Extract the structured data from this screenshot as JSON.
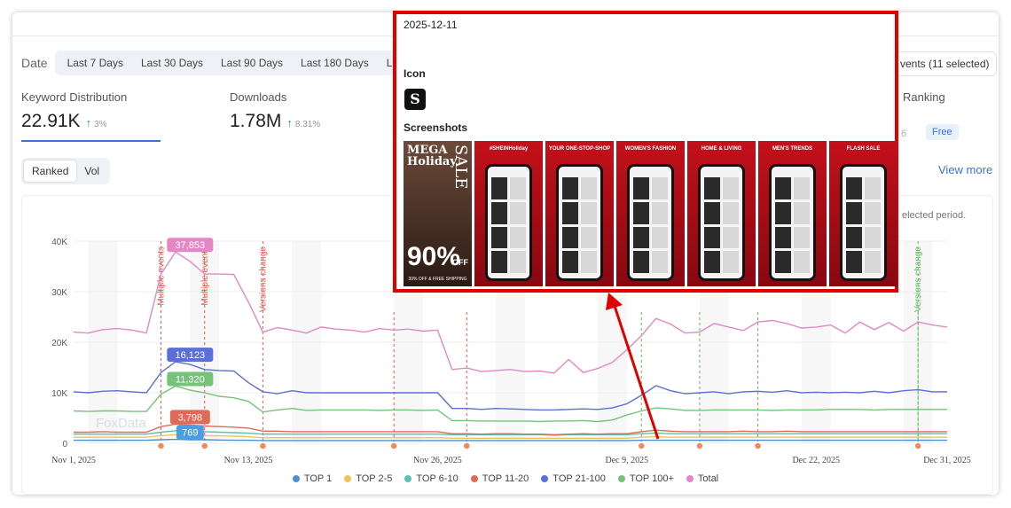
{
  "date_filter": {
    "label": "Date",
    "options": [
      "Last 7 Days",
      "Last 30 Days",
      "Last 90 Days",
      "Last 180 Days",
      "Last"
    ]
  },
  "events_filter": {
    "label": "vents (11 selected)"
  },
  "metrics": {
    "keyword_distribution": {
      "label": "Keyword Distribution",
      "value": "22.91K",
      "delta": "3%"
    },
    "downloads": {
      "label": "Downloads",
      "value": "1.78M",
      "delta": "8.31%"
    },
    "ranking": {
      "label": "Ranking",
      "small": "6",
      "badge": "Free"
    }
  },
  "toggle": {
    "ranked": "Ranked",
    "vol": "Vol"
  },
  "view_more": "View more",
  "period_note": "elected period.",
  "watermark": "FoxData",
  "popup": {
    "date": "2025-12-11",
    "icon_heading": "Icon",
    "icon_letter": "S",
    "screenshots_heading": "Screenshots",
    "screenshots": [
      {
        "caption": "",
        "title": "MEGA Holiday",
        "side": "SALE",
        "big": "90%",
        "off": "OFF",
        "footer": "30% OFF & FREE SHIPPING"
      },
      {
        "caption": "#SHEINHoliday"
      },
      {
        "caption": "YOUR ONE-STOP-SHOP"
      },
      {
        "caption": "WOMEN'S FASHION"
      },
      {
        "caption": "HOME & LIVING"
      },
      {
        "caption": "MEN'S TRENDS"
      },
      {
        "caption": "FLASH SALE"
      }
    ]
  },
  "chart_data": {
    "type": "line",
    "ylim": [
      0,
      40000
    ],
    "y_ticks": [
      "0",
      "10K",
      "20K",
      "30K",
      "40K"
    ],
    "x_ticks": [
      {
        "label": "Nov 1, 2025",
        "day": 0
      },
      {
        "label": "Nov 13, 2025",
        "day": 12
      },
      {
        "label": "Nov 26, 2025",
        "day": 25
      },
      {
        "label": "Dec 9, 2025",
        "day": 38
      },
      {
        "label": "Dec 22, 2025",
        "day": 51
      },
      {
        "label": "Dec 31, 2025",
        "day": 60
      }
    ],
    "annotations": [
      {
        "day": 6,
        "text": "Multiple events",
        "color": "#e05a4f"
      },
      {
        "day": 9,
        "text": "Multiple events",
        "color": "#e05a4f"
      },
      {
        "day": 13,
        "text": "Versions change",
        "color": "#e05a4f"
      },
      {
        "day": 58,
        "text": "Versions change",
        "color": "#5cb85c"
      }
    ],
    "event_lines": [
      {
        "day": 22,
        "color": "#e05a4f"
      },
      {
        "day": 27,
        "color": "#e05a4f"
      },
      {
        "day": 39,
        "color": "#5cb85c"
      },
      {
        "day": 43,
        "color": "#5cb85c"
      },
      {
        "day": 47,
        "color": "#5cb85c"
      },
      {
        "day": 58,
        "color": "#5cb85c"
      }
    ],
    "event_markers": [
      6,
      9,
      13,
      22,
      27,
      39,
      43,
      47,
      58
    ],
    "value_labels": [
      {
        "text": "37,853",
        "day": 8,
        "value": 37853,
        "color": "#e487c4"
      },
      {
        "text": "16,123",
        "day": 8,
        "value": 16123,
        "color": "#5b6fd6"
      },
      {
        "text": "11,320",
        "day": 8,
        "value": 11320,
        "color": "#77c27a"
      },
      {
        "text": "3,798",
        "day": 8,
        "value": 3798,
        "color": "#e06a57"
      },
      {
        "text": "769",
        "day": 8,
        "value": 769,
        "color": "#4a9de0"
      }
    ],
    "series": [
      {
        "name": "TOP 1",
        "color": "#4a90d9",
        "values": [
          600,
          600,
          600,
          600,
          600,
          600,
          700,
          769,
          700,
          700,
          650,
          600,
          600,
          550,
          550,
          550,
          550,
          550,
          550,
          550,
          550,
          550,
          550,
          550,
          550,
          550,
          550,
          550,
          550,
          550,
          550,
          550,
          550,
          550,
          550,
          550,
          550,
          550,
          550,
          600,
          600,
          600,
          600,
          600,
          600,
          600,
          600,
          600,
          600,
          600,
          600,
          600,
          600,
          600,
          600,
          600,
          600,
          600,
          600,
          600,
          600
        ]
      },
      {
        "name": "TOP 2-5",
        "color": "#f0c25a",
        "values": [
          1200,
          1200,
          1200,
          1200,
          1200,
          1200,
          1500,
          1700,
          1600,
          1500,
          1450,
          1400,
          1300,
          1100,
          1100,
          1100,
          1100,
          1100,
          1100,
          1100,
          1100,
          1100,
          1100,
          1100,
          1100,
          1100,
          1000,
          1000,
          1000,
          1000,
          1000,
          1000,
          1000,
          1000,
          1000,
          1000,
          1000,
          1000,
          1000,
          1200,
          1300,
          1200,
          1200,
          1200,
          1200,
          1200,
          1200,
          1200,
          1200,
          1200,
          1200,
          1200,
          1200,
          1200,
          1200,
          1200,
          1200,
          1200,
          1200,
          1200,
          1200
        ]
      },
      {
        "name": "TOP 6-10",
        "color": "#5cc0b0",
        "values": [
          1800,
          1800,
          1800,
          1800,
          1800,
          1800,
          2200,
          2500,
          2400,
          2300,
          2200,
          2100,
          2000,
          1800,
          1800,
          1800,
          1800,
          1800,
          1800,
          1800,
          1800,
          1800,
          1800,
          1800,
          1800,
          1800,
          1700,
          1700,
          1700,
          1700,
          1700,
          1700,
          1700,
          1600,
          1700,
          1700,
          1700,
          1700,
          1700,
          1900,
          2000,
          1900,
          1900,
          1900,
          1900,
          1900,
          1900,
          1900,
          1900,
          1900,
          1900,
          1900,
          1900,
          1900,
          1900,
          1900,
          1900,
          1900,
          1900,
          1900,
          1900
        ]
      },
      {
        "name": "TOP 11-20",
        "color": "#e06a57",
        "values": [
          2200,
          2200,
          2300,
          2200,
          2200,
          2200,
          3300,
          3798,
          3600,
          3400,
          3300,
          3200,
          3000,
          2400,
          2400,
          2300,
          2300,
          2300,
          2300,
          2300,
          2300,
          2300,
          2300,
          2300,
          2300,
          2300,
          1900,
          1900,
          1800,
          1900,
          1900,
          1800,
          1800,
          1700,
          1800,
          1900,
          1800,
          1900,
          1900,
          2300,
          2600,
          2400,
          2300,
          2300,
          2300,
          2300,
          2400,
          2300,
          2300,
          2400,
          2300,
          2300,
          2300,
          2300,
          2300,
          2300,
          2300,
          2300,
          2300,
          2300,
          2300
        ]
      },
      {
        "name": "TOP 21-100",
        "color": "#5b6fd6",
        "values": [
          10200,
          10000,
          10300,
          10400,
          10200,
          10000,
          14000,
          16123,
          15600,
          14600,
          14400,
          14300,
          12000,
          10200,
          9800,
          10400,
          10000,
          10000,
          10000,
          10000,
          10000,
          10000,
          10000,
          10000,
          10000,
          10000,
          6900,
          6900,
          6700,
          6900,
          6800,
          6700,
          6600,
          6600,
          6700,
          6800,
          6700,
          7000,
          7800,
          9500,
          11400,
          10400,
          9800,
          10000,
          10200,
          9800,
          10200,
          10300,
          10100,
          10400,
          10000,
          10100,
          10000,
          10100,
          10000,
          10300,
          10000,
          10400,
          10600,
          10200,
          10200
        ]
      },
      {
        "name": "TOP 100+",
        "color": "#77c27a",
        "values": [
          6400,
          6300,
          6400,
          6400,
          6300,
          6300,
          9700,
          11320,
          10500,
          10000,
          9300,
          9000,
          8300,
          6200,
          6600,
          6900,
          6500,
          6600,
          6600,
          6600,
          6600,
          6500,
          6600,
          6600,
          6500,
          6600,
          4500,
          4500,
          4400,
          4400,
          4400,
          4400,
          4300,
          4400,
          4400,
          4500,
          4300,
          4600,
          5600,
          6400,
          7000,
          6800,
          6500,
          6500,
          6600,
          6600,
          6600,
          6600,
          6500,
          6600,
          6600,
          6600,
          6700,
          6700,
          6700,
          6600,
          6700,
          6700,
          6700,
          6700,
          6700
        ]
      },
      {
        "name": "Total",
        "color": "#e487c4",
        "values": [
          22000,
          21800,
          22500,
          22700,
          22400,
          21800,
          33500,
          37853,
          36000,
          33500,
          33500,
          33400,
          28000,
          22000,
          22900,
          22400,
          21800,
          23000,
          22600,
          22400,
          22000,
          22700,
          22400,
          22600,
          22200,
          22400,
          14600,
          14900,
          14200,
          14400,
          14600,
          14200,
          14300,
          13900,
          16600,
          14000,
          14800,
          16000,
          18500,
          21300,
          24700,
          23600,
          21800,
          22000,
          23700,
          23000,
          22300,
          24000,
          24300,
          23700,
          22800,
          23000,
          23400,
          21800,
          24000,
          22500,
          23900,
          22200,
          24000,
          23400,
          23000
        ]
      }
    ]
  }
}
